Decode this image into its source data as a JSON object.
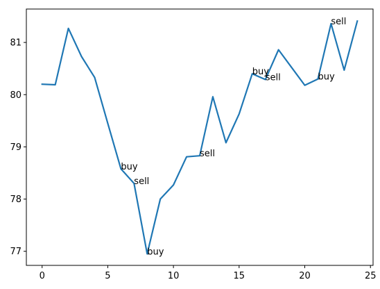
{
  "chart_data": {
    "type": "line",
    "title": "",
    "xlabel": "",
    "ylabel": "",
    "xlim": [
      -1.2,
      25.2
    ],
    "ylim": [
      76.73,
      81.64
    ],
    "grid": false,
    "line_color": "#1f77b4",
    "x": [
      0,
      1,
      2,
      3,
      4,
      5,
      6,
      7,
      8,
      9,
      10,
      11,
      12,
      13,
      14,
      15,
      16,
      17,
      18,
      19,
      20,
      21,
      22,
      23,
      24
    ],
    "y": [
      80.2,
      80.19,
      81.27,
      80.73,
      80.33,
      79.45,
      78.58,
      78.3,
      76.95,
      78.0,
      78.27,
      78.81,
      78.83,
      79.96,
      79.08,
      79.63,
      80.4,
      80.29,
      80.86,
      80.52,
      80.18,
      80.3,
      81.36,
      80.47,
      81.41
    ],
    "xticks": [
      0,
      5,
      10,
      15,
      20,
      25
    ],
    "xtick_labels": [
      "0",
      "5",
      "10",
      "15",
      "20",
      "25"
    ],
    "yticks": [
      77,
      78,
      79,
      80,
      81
    ],
    "ytick_labels": [
      "77",
      "78",
      "79",
      "80",
      "81"
    ],
    "annotations": [
      {
        "text": "buy",
        "x": 6,
        "y": 78.58
      },
      {
        "text": "sell",
        "x": 7,
        "y": 78.3
      },
      {
        "text": "buy",
        "x": 8,
        "y": 76.95
      },
      {
        "text": "sell",
        "x": 12,
        "y": 78.83
      },
      {
        "text": "buy",
        "x": 16,
        "y": 80.4
      },
      {
        "text": "sell",
        "x": 17,
        "y": 80.29
      },
      {
        "text": "buy",
        "x": 21,
        "y": 80.3
      },
      {
        "text": "sell",
        "x": 22,
        "y": 81.36
      }
    ]
  }
}
